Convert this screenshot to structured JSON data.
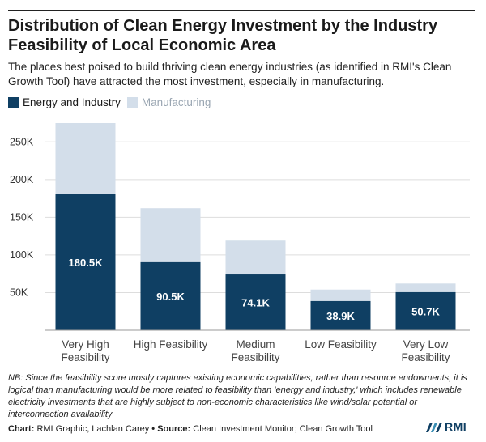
{
  "header": {
    "title": "Distribution of Clean Energy Investment by the Industry Feasibility of Local Economic Area",
    "subtitle": "The places best poised to build thriving clean energy industries (as identified in RMI's Clean Growth Tool) have attracted the most investment, especially in manufacturing."
  },
  "legend": {
    "energy_label": "Energy and Industry",
    "manufacturing_label": "Manufacturing"
  },
  "colors": {
    "energy": "#0f3f63",
    "manufacturing": "#d3deea",
    "grid": "#dddddd",
    "axis_text": "#333333"
  },
  "chart_data": {
    "type": "bar",
    "stacked": true,
    "categories": [
      [
        "Very High",
        "Feasibility"
      ],
      [
        "High Feasibility"
      ],
      [
        "Medium",
        "Feasibility"
      ],
      [
        "Low Feasibility"
      ],
      [
        "Very Low",
        "Feasibility"
      ]
    ],
    "series": [
      {
        "name": "Energy and Industry",
        "values": [
          180.5,
          90.5,
          74.1,
          38.9,
          50.7
        ],
        "labels": [
          "180.5K",
          "90.5K",
          "74.1K",
          "38.9K",
          "50.7K"
        ]
      },
      {
        "name": "Manufacturing",
        "values": [
          94.5,
          71.5,
          44.9,
          15.1,
          11.3
        ]
      }
    ],
    "yticks": [
      50,
      100,
      150,
      200,
      250
    ],
    "ytick_labels": [
      "50K",
      "100K",
      "150K",
      "200K",
      "250K"
    ],
    "ylim": [
      0,
      275
    ],
    "grid": true,
    "legend_position": "top-left"
  },
  "footer": {
    "note": "NB: Since the feasibility score mostly captures existing economic capabilities, rather than resource endowments, it is logical than manufacturing would be more related to feasibility than 'energy and industry,' which includes renewable electricity investments that are highly subject to non-economic characteristics like wind/solar potential or interconnection availability",
    "chart_label": "Chart:",
    "chart_value": "RMI Graphic, Lachlan Carey",
    "bullet": "•",
    "source_label": "Source:",
    "source_value": "Clean Investment Monitor; Clean Growth Tool",
    "logo_text": "RMI"
  }
}
